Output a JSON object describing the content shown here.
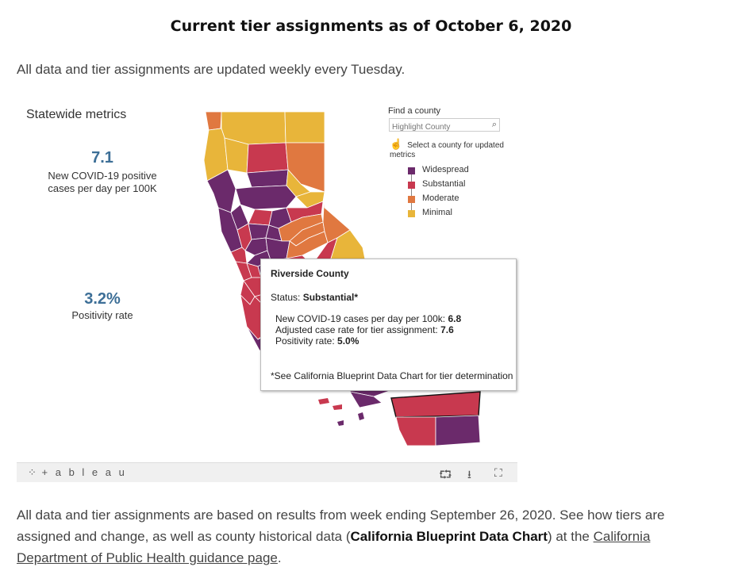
{
  "page": {
    "heading": "Current tier assignments as of October 6, 2020",
    "intro": "All data and tier assignments are updated weekly every Tuesday.",
    "outro_prefix": "All data and tier assignments are based on results from week ending September 26, 2020. See how tiers are assigned and change, as well as county historical data (",
    "outro_bold": "California Blueprint Data Chart",
    "outro_mid": ") at the ",
    "outro_link": "California Department of Public Health guidance page",
    "outro_end": "."
  },
  "metrics": {
    "title": "Statewide metrics",
    "case_rate_value": "7.1",
    "case_rate_label_1": "New COVID-19 positive",
    "case_rate_label_2": "cases per day per 100K",
    "positivity_value": "3.2%",
    "positivity_label": "Positivity rate"
  },
  "controls": {
    "find_label": "Find a county",
    "search_placeholder": "Highlight County",
    "hint": "Select a county for updated metrics"
  },
  "legend": [
    {
      "label": "Widespread",
      "color": "#6b2a6b"
    },
    {
      "label": "Substantial",
      "color": "#c8394f"
    },
    {
      "label": "Moderate",
      "color": "#e07840"
    },
    {
      "label": "Minimal",
      "color": "#e8b53a"
    }
  ],
  "tooltip": {
    "title": "Riverside County",
    "status_label": "Status:",
    "status_value": "Substantial*",
    "row1_label": "New COVID-19 cases per day per 100k:",
    "row1_value": "6.8",
    "row2_label": "Adjusted case rate for tier assignment:",
    "row2_value": "7.6",
    "row3_label": "Positivity rate:",
    "row3_value": "5.0%",
    "footnote": "*See California Blueprint Data Chart for tier determination"
  },
  "toolbar": {
    "brand": "+ a b l e a u",
    "icons": [
      "tableau-logo-icon",
      "share-icon",
      "download-icon",
      "fullscreen-icon"
    ]
  },
  "colors": {
    "widespread": "#6b2a6b",
    "substantial": "#c8394f",
    "moderate": "#e07840",
    "minimal": "#e8b53a",
    "metric_blue": "#3d6f97"
  }
}
